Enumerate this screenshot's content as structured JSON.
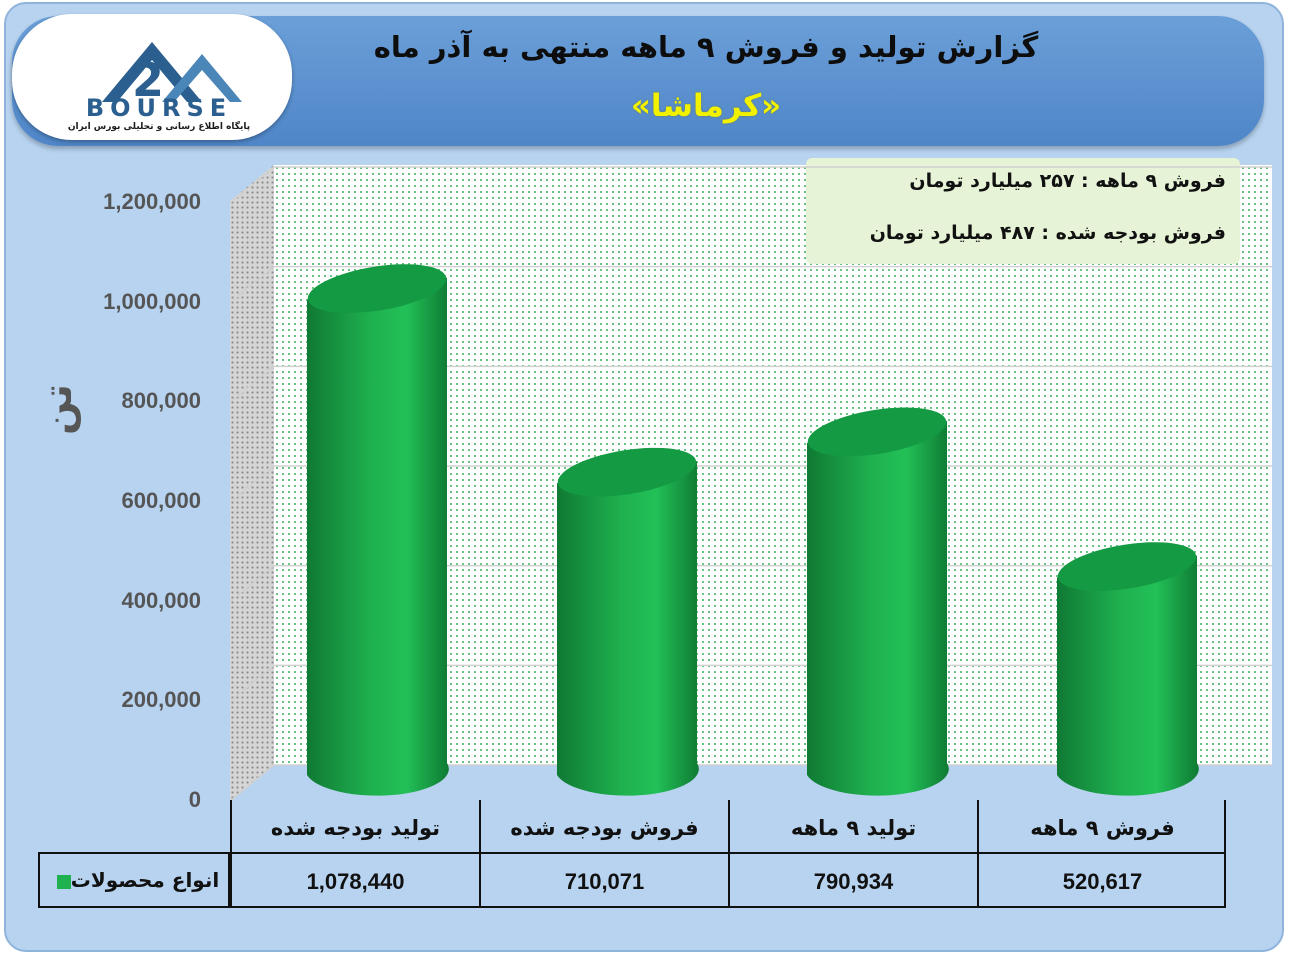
{
  "header": {
    "title": "گزارش تولید و فروش ۹ ماهه منتهی به آذر ماه",
    "subtitle": "«کرماشا»"
  },
  "logo": {
    "word": "BOURSE",
    "tagline": "پایگاه اطلاع رسانی و تحلیلی بورس ایران"
  },
  "info": {
    "line1": "فروش ۹ ماهه : ۲۵۷ میلیارد تومان",
    "line2": "فروش بودجه شده : ۴۸۷ میلیارد تومان"
  },
  "y_unit": "تن",
  "colors": {
    "bar": "#1fb04f",
    "bar_dark": "#0f7a33",
    "bar_top": "#149a43"
  },
  "chart_data": {
    "type": "bar",
    "categories": [
      "تولید بودجه شده",
      "فروش بودجه شده",
      "تولید ۹ ماهه",
      "فروش ۹ ماهه"
    ],
    "series": [
      {
        "name": "انواع محصولات",
        "values": [
          1078440,
          710071,
          790934,
          520617
        ]
      }
    ],
    "value_labels": [
      "1,078,440",
      "710,071",
      "790,934",
      "520,617"
    ],
    "yticks": [
      "0",
      "200,000",
      "400,000",
      "600,000",
      "800,000",
      "1,000,000",
      "1,200,000"
    ],
    "ylim": [
      0,
      1200000
    ],
    "grid": true,
    "legend": "table-left"
  }
}
